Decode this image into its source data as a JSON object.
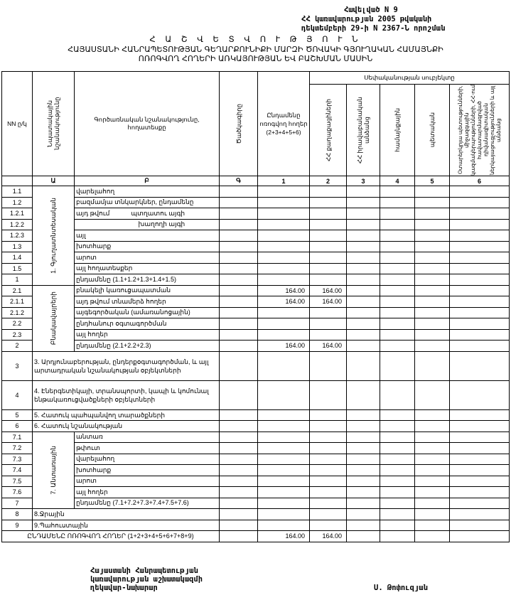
{
  "appendix": [
    "Հավելված N 9",
    "ՀՀ կառավարության 2005 թվականի",
    "դեկտեմբերի 29-ի N 2367-Ն որոշման"
  ],
  "title": [
    "Հ Ա Շ Վ Ե Տ Վ Ո Ւ Թ Յ Ո Ւ Ն",
    "ՀԱՅԱՍՏԱՆԻ ՀԱՆՐԱՊԵՏՈՒԹՅԱՆ ԳԵՂԱՐՔՈՒՆԻՔԻ ՄԱՐԶԻ ԾՈՎԱԿԻ ԳՅՈՒՂԱԿԱՆ ՀԱՄԱՅՆՔԻ",
    "ՈՌՈԳՎՈՂ ՀՈՂԵՐԻ ԱՌԿԱՅՈՒԹՅԱՆ ԵՎ ԲԱՇԽՄԱՆ ՄԱՍԻՆ"
  ],
  "headers": {
    "nn": "NN ը/կ",
    "purpose": "Նպատակային նշանակությունը",
    "function": "Գործառնական նշանակությունը, հողատեսքը",
    "code": "Ծածկագիրը",
    "total": "Ընդամենը ոռոգվող հողեր (2+3+4+5+6)",
    "ownership": "Սեփականության սուբյեկտը",
    "owners": [
      "ՀՀ քաղաքացիների",
      "ՀՀ իրավաբանական անձանց",
      "համայնքային",
      "պետական",
      "Օտարերկրյա պետությունների, միջազգային կազմակերպությունների, ՀՀ-ում հավատարմագրված դիվանագիտական ներկայացուցչությունների և այլ անձանց"
    ],
    "letters": [
      "",
      "Ա",
      "Բ",
      "Գ",
      "1",
      "2",
      "3",
      "4",
      "5",
      "6"
    ]
  },
  "rows": [
    {
      "no": "1.1",
      "group": "1. Գյուղատնտեսական",
      "span": 9,
      "label": "վարելահող"
    },
    {
      "no": "1.2",
      "label": "բազմամյա տնկարկներ, ընդամենը"
    },
    {
      "no": "1.2.1",
      "label": "այդ թվում            պտղատու այգի"
    },
    {
      "no": "1.2.2",
      "label": "                                   խաղողի այգի"
    },
    {
      "no": "1.2.3",
      "label": "այլ"
    },
    {
      "no": "1.3",
      "label": "խոտհարք"
    },
    {
      "no": "1.4",
      "label": "արոտ"
    },
    {
      "no": "1.5",
      "label": "այլ հողատեսքեր"
    },
    {
      "no": "1",
      "label": "ընդամենը (1.1+1.2+1.3+1.4+1.5)"
    },
    {
      "no": "2.1",
      "group": "Բնակավայրերի",
      "span": 6,
      "label": "բնակելի կառուցապատման",
      "total": "164.00",
      "c2": "164.00"
    },
    {
      "no": "2.1.1",
      "label": "այդ թվում տնամերձ հողեր",
      "total": "164.00",
      "c2": "164.00"
    },
    {
      "no": "2.1.2",
      "label": "այգեգործական (ամառանոցային)"
    },
    {
      "no": "2.2",
      "label": "ընդհանուր օգտագործման"
    },
    {
      "no": "2.3",
      "label": "այլ հողեր"
    },
    {
      "no": "2",
      "label": "ընդամենը (2.1+2.2+2.3)",
      "total": "164.00",
      "c2": "164.00"
    },
    {
      "no": "3",
      "wide": "3. Արդյունաբերության, ընդերքօգտագործման, և այլ արտադրական նշանակության օբյեկտների",
      "tall": true
    },
    {
      "no": "4",
      "wide": "4. Էներգետիկայի, տրանսպորտի, կապի և կոմունալ ենթակառուցվածքների օբյեկտների",
      "tall": true
    },
    {
      "no": "5",
      "wide": "5. Հատուկ պահպանվող տարածքների"
    },
    {
      "no": "6",
      "wide": "6. Հատուկ նշանակության"
    },
    {
      "no": "7.1",
      "group": "7. Անտառային",
      "span": 7,
      "label": "անտառ"
    },
    {
      "no": "7.2",
      "label": "թփուտ"
    },
    {
      "no": "7.3",
      "label": "վարելահող"
    },
    {
      "no": "7.4",
      "label": "խոտհարք"
    },
    {
      "no": "7.5",
      "label": "արոտ"
    },
    {
      "no": "7.6",
      "label": "այլ հողեր"
    },
    {
      "no": "7",
      "label": "ընդամենը (7.1+7.2+7.3+7.4+7.5+7.6)"
    },
    {
      "no": "8",
      "wide": "8.Ջրային"
    },
    {
      "no": "9",
      "wide": "9.Պահուստային"
    }
  ],
  "grand_total": {
    "label": "ԸՆԴԱՄԵՆԸ ՈՌՈԳՎՈՂ ՀՈՂԵՐ (1+2+3+4+5+6+7+8+9)",
    "total": "164.00",
    "c2": "164.00"
  },
  "footer": [
    "Հայաստանի Հանրապետության",
    "կառավարության աշխատակազմի",
    "ղեկավար-նախարար"
  ],
  "signatory": "Ս. Թոփուզյան"
}
